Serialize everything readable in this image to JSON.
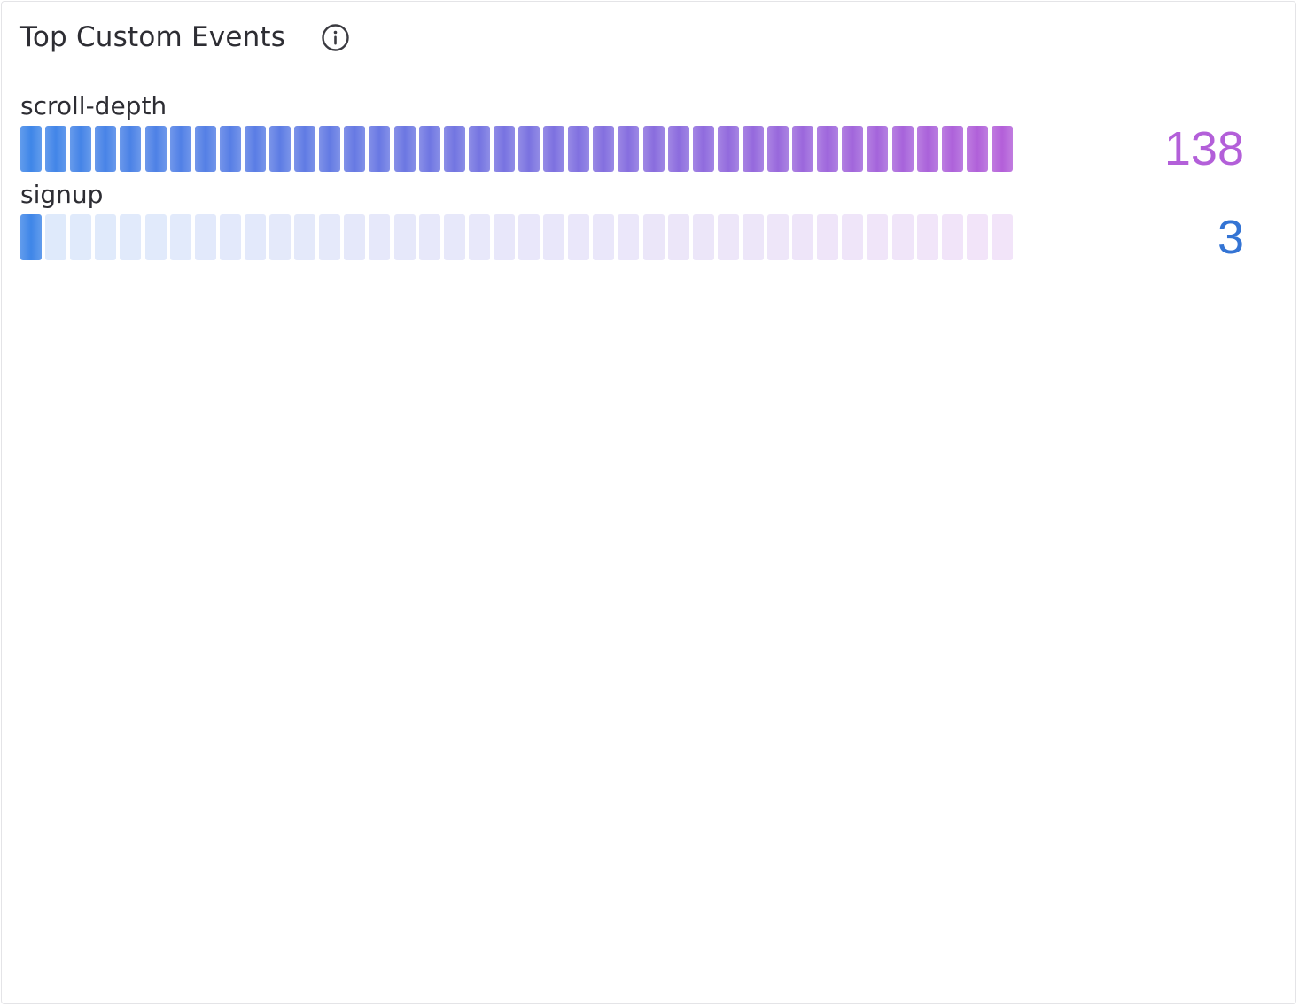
{
  "widget": {
    "title": "Top Custom Events",
    "info_icon": "info-circle-icon"
  },
  "colors": {
    "gradient_start": "#3f86e8",
    "gradient_end": "#b35fd9",
    "title_text": "#2d2d33",
    "value_blue": "#3474d4",
    "value_purple": "#b35fd9"
  },
  "events": [
    {
      "name": "scroll-depth",
      "count": "138",
      "filled_fraction": 1.0
    },
    {
      "name": "signup",
      "count": "3",
      "filled_fraction": 0.025
    }
  ]
}
